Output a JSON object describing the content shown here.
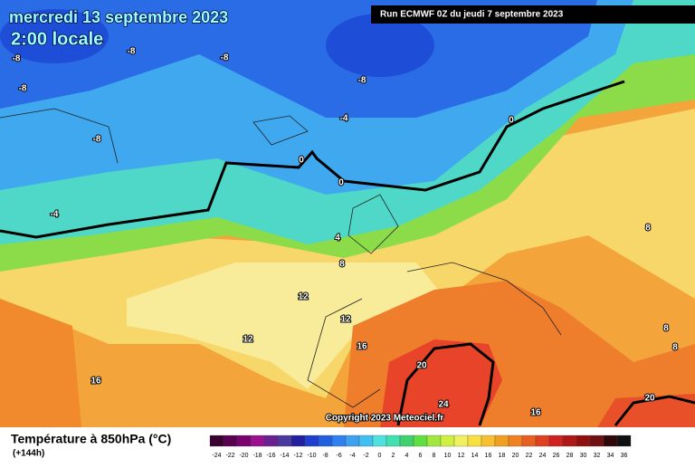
{
  "header": {
    "title": "mercredi 13 septembre 2023",
    "time": "2:00 locale",
    "run": "Run ECMWF 0Z du jeudi 7 septembre 2023"
  },
  "map": {
    "contour_labels": [
      -8,
      -8,
      -8,
      -8,
      -8,
      -8,
      -4,
      0,
      0,
      0,
      -4,
      4,
      8,
      12,
      12,
      12,
      16,
      16,
      20,
      24,
      16,
      20,
      8,
      8,
      8
    ],
    "copyright": "Copyright 2023 Meteociel.fr"
  },
  "legend": {
    "title": "Température à 850hPa (°C)",
    "subtitle": "(+144h)",
    "ticks": [
      -24,
      -22,
      -20,
      -18,
      -16,
      -14,
      -12,
      -10,
      -8,
      -6,
      -4,
      -2,
      0,
      2,
      4,
      6,
      8,
      10,
      12,
      14,
      16,
      18,
      20,
      22,
      24,
      26,
      28,
      30,
      32,
      34,
      36
    ],
    "colors": [
      "#3a0030",
      "#5a0050",
      "#7a0070",
      "#9a1090",
      "#6a2090",
      "#4a3aa0",
      "#2020a0",
      "#1f3fd0",
      "#2060e0",
      "#2f80f0",
      "#3fa0f0",
      "#40c0f0",
      "#50e0e0",
      "#40e0b0",
      "#40d070",
      "#60e040",
      "#a0e840",
      "#d0f040",
      "#f0f060",
      "#f8e040",
      "#f8c030",
      "#f0a020",
      "#f08020",
      "#e86020",
      "#e04020",
      "#d02020",
      "#b01818",
      "#901010",
      "#701010",
      "#300808",
      "#101010"
    ]
  }
}
